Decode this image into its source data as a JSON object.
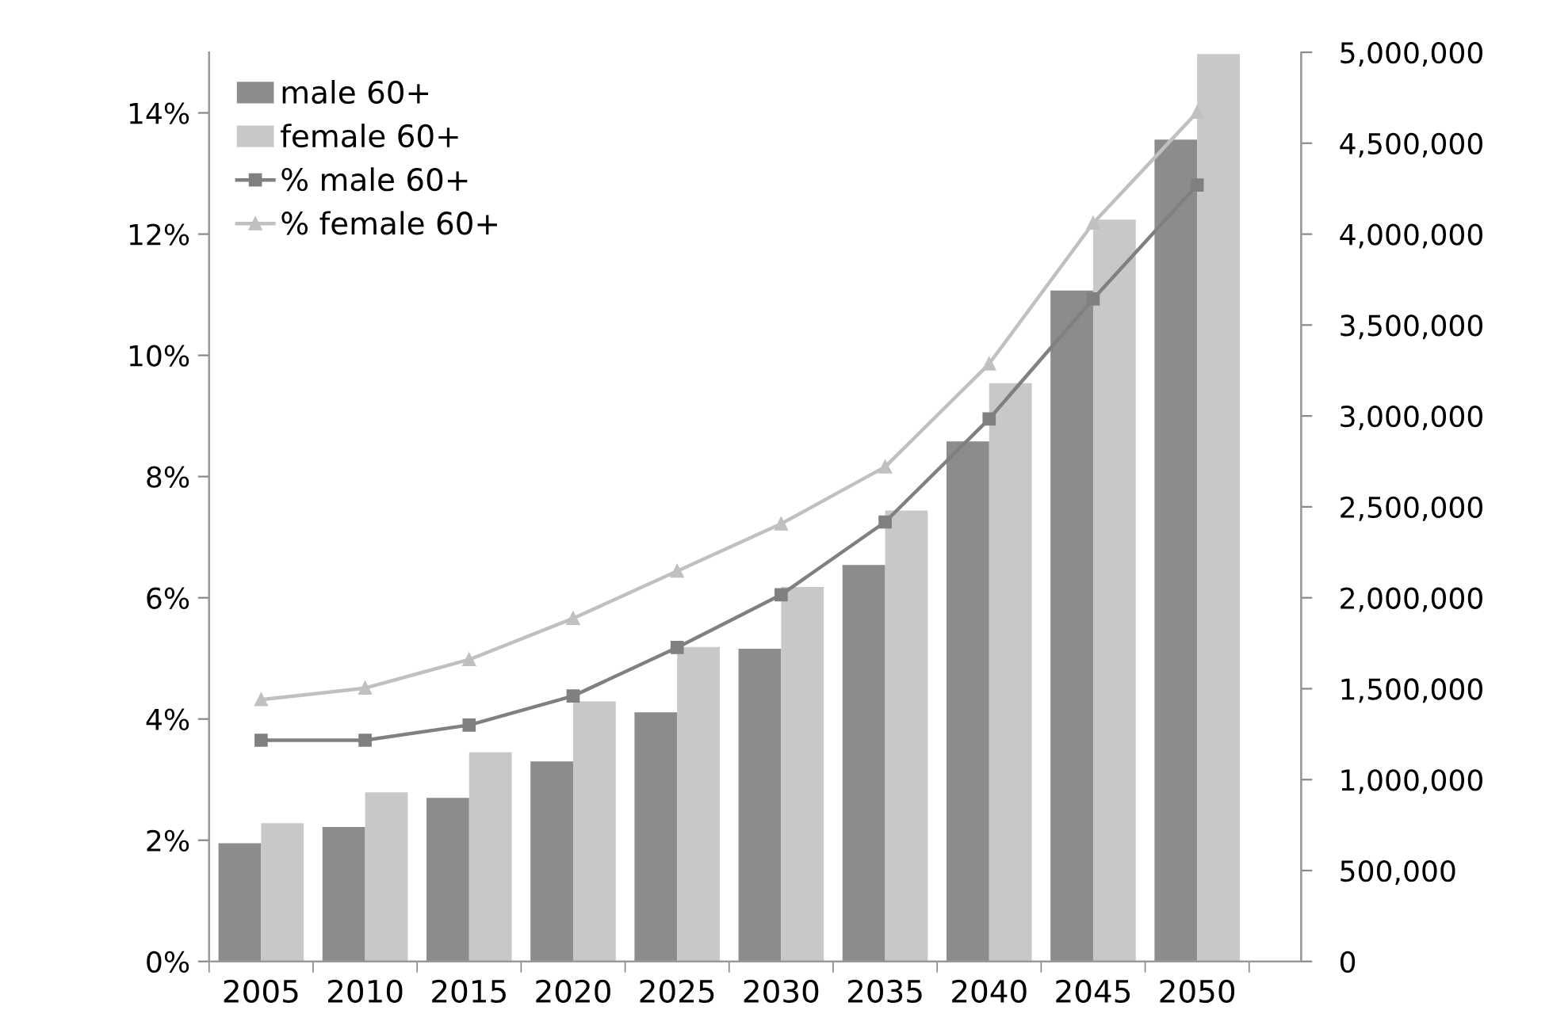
{
  "chart_data": {
    "type": "bar",
    "categories": [
      "2005",
      "2010",
      "2015",
      "2020",
      "2025",
      "2030",
      "2035",
      "2040",
      "2045",
      "2050"
    ],
    "series": [
      {
        "name": "male 60+",
        "axis": "y2",
        "color": "#8c8c8c",
        "values": [
          650000,
          740000,
          900000,
          1100000,
          1370000,
          1720000,
          2180000,
          2860000,
          3690000,
          4520000
        ]
      },
      {
        "name": "female 60+",
        "axis": "y2",
        "color": "#c8c8c8",
        "values": [
          760000,
          930000,
          1150000,
          1430000,
          1730000,
          2060000,
          2480000,
          3180000,
          4080000,
          4990000
        ]
      },
      {
        "name": "% male 60+",
        "type": "line",
        "axis": "y",
        "color": "#808080",
        "marker": "square",
        "values": [
          3.65,
          3.65,
          3.9,
          4.38,
          5.18,
          6.05,
          7.25,
          8.95,
          10.93,
          12.81
        ]
      },
      {
        "name": "% female 60+",
        "type": "line",
        "axis": "y",
        "color": "#c0c0c0",
        "marker": "triangle",
        "values": [
          4.32,
          4.51,
          4.98,
          5.66,
          6.44,
          7.22,
          8.16,
          9.86,
          12.18,
          14.01
        ]
      }
    ],
    "ylim": [
      0,
      15
    ],
    "yticks": [
      {
        "value": 0,
        "label": "0%"
      },
      {
        "value": 2,
        "label": "2%"
      },
      {
        "value": 4,
        "label": "4%"
      },
      {
        "value": 6,
        "label": "6%"
      },
      {
        "value": 8,
        "label": "8%"
      },
      {
        "value": 10,
        "label": "10%"
      },
      {
        "value": 12,
        "label": "12%"
      },
      {
        "value": 14,
        "label": "14%"
      }
    ],
    "y2lim": [
      0,
      5000000
    ],
    "y2ticks": [
      0,
      {
        "value": 500000,
        "label": "500,000"
      },
      {
        "value": 1000000,
        "label": "1,000,000"
      },
      {
        "value": 1500000,
        "label": "1,500,000"
      },
      {
        "value": 2000000,
        "label": "2,000,000"
      },
      {
        "value": 2500000,
        "label": "2,500,000"
      },
      {
        "value": 3000000,
        "label": "3,000,000"
      },
      {
        "value": 3500000,
        "label": "3,500,000"
      },
      {
        "value": 4000000,
        "label": "4,000,000"
      },
      {
        "value": 4500000,
        "label": "4,500,000"
      },
      {
        "value": 5000000,
        "label": "5,000,000"
      }
    ],
    "grid": false,
    "legend": "top left"
  }
}
